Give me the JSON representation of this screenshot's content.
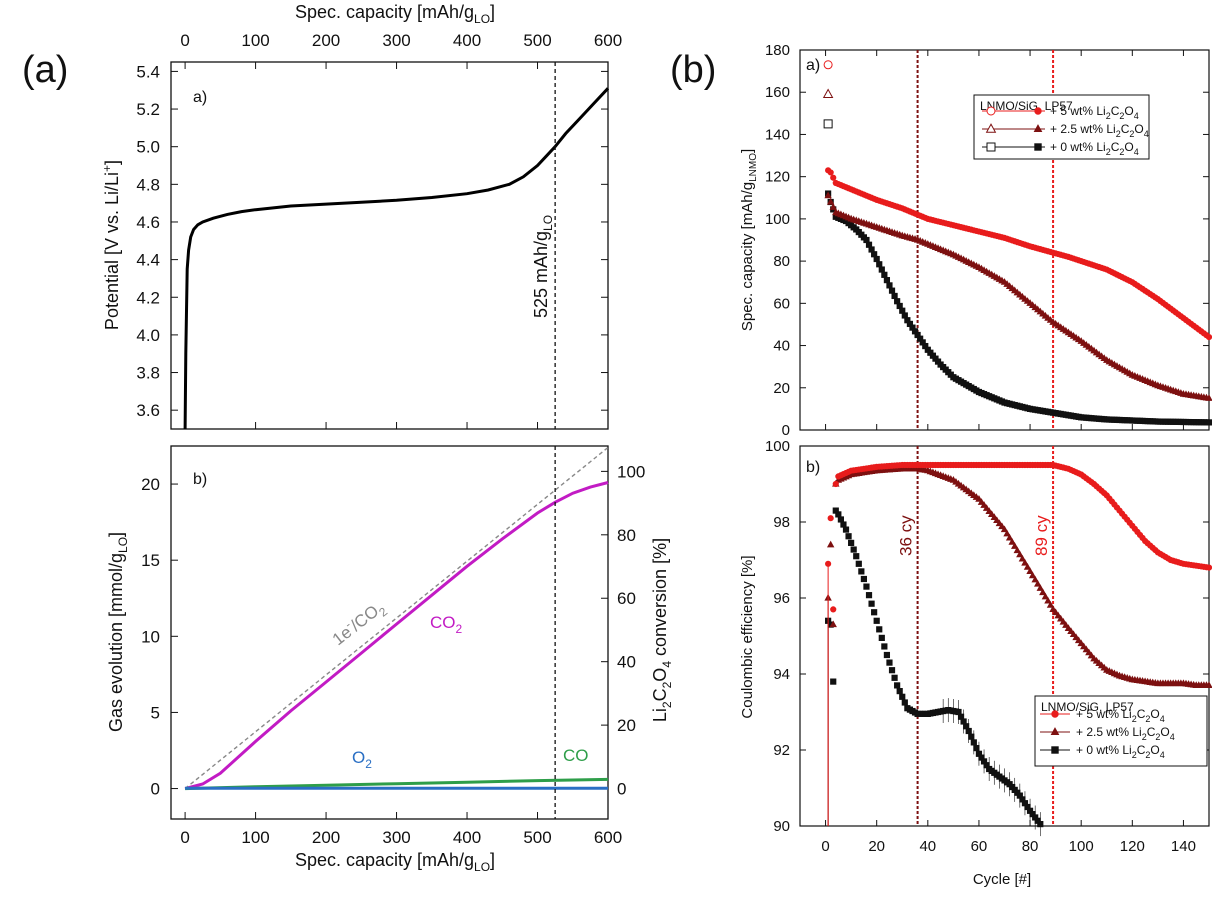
{
  "figure": {
    "panel_a_label": "(a)",
    "panel_b_label": "(b)"
  },
  "chart_data": [
    {
      "id": "a-top",
      "type": "line",
      "subplot_label": "a)",
      "top_xlabel": "Spec. capacity [mAh/g",
      "top_xlabel_sub": "LO",
      "top_xlabel_end": "]",
      "ylabel": "Potential [V vs. Li/Li",
      "ylabel_sup": "+",
      "ylabel_end": "]",
      "xlim": [
        -20,
        600
      ],
      "ylim": [
        3.5,
        5.45
      ],
      "xticks": [
        0,
        100,
        200,
        300,
        400,
        500,
        600
      ],
      "yticks": [
        3.6,
        3.8,
        4.0,
        4.2,
        4.4,
        4.6,
        4.8,
        5.0,
        5.2,
        5.4
      ],
      "series": [
        {
          "name": "Potential",
          "color": "#000000",
          "x": [
            0,
            1,
            3,
            5,
            8,
            12,
            18,
            25,
            40,
            60,
            80,
            100,
            150,
            200,
            250,
            300,
            350,
            400,
            430,
            460,
            480,
            500,
            515,
            525,
            540,
            560,
            580,
            600
          ],
          "y": [
            3.5,
            3.9,
            4.35,
            4.45,
            4.52,
            4.56,
            4.585,
            4.6,
            4.62,
            4.64,
            4.655,
            4.665,
            4.685,
            4.695,
            4.705,
            4.715,
            4.73,
            4.75,
            4.77,
            4.8,
            4.84,
            4.9,
            4.96,
            5.0,
            5.07,
            5.15,
            5.23,
            5.31
          ]
        }
      ],
      "vline_x": 525,
      "vline_label": "525 mAh/g",
      "vline_label_sub": "LO"
    },
    {
      "id": "a-bottom",
      "type": "line",
      "subplot_label": "b)",
      "xlabel": "Spec. capacity [mAh/g",
      "xlabel_sub": "LO",
      "xlabel_end": "]",
      "ylabel": "Gas evolution [mmol/g",
      "ylabel_sub": "LO",
      "ylabel_end": "]",
      "y2label_a": "Li",
      "y2label_b": "2",
      "y2label_c": "C",
      "y2label_d": "2",
      "y2label_e": "O",
      "y2label_f": "4",
      "y2label_g": " conversion [%]",
      "xlim": [
        -20,
        600
      ],
      "ylim": [
        -2,
        22.5
      ],
      "y2lim": [
        -9.6,
        108
      ],
      "xticks": [
        0,
        100,
        200,
        300,
        400,
        500,
        600
      ],
      "yticks": [
        0,
        5,
        10,
        15,
        20
      ],
      "y2ticks": [
        0,
        20,
        40,
        60,
        80,
        100
      ],
      "series": [
        {
          "name": "CO2",
          "color": "#c21bc4",
          "x": [
            0,
            25,
            50,
            100,
            150,
            200,
            250,
            300,
            350,
            400,
            450,
            500,
            525,
            550,
            575,
            600
          ],
          "y": [
            0,
            0.3,
            1.0,
            3.1,
            5.1,
            7.0,
            8.9,
            10.8,
            12.7,
            14.6,
            16.4,
            18.1,
            18.8,
            19.4,
            19.8,
            20.1
          ]
        },
        {
          "name": "1e-/CO2",
          "color": "#888888",
          "dashed": true,
          "x": [
            0,
            600
          ],
          "y": [
            0,
            22.4
          ]
        },
        {
          "name": "CO",
          "color": "#2e9e49",
          "x": [
            0,
            100,
            200,
            300,
            400,
            500,
            600
          ],
          "y": [
            0,
            0.12,
            0.22,
            0.32,
            0.42,
            0.52,
            0.6
          ]
        },
        {
          "name": "O2",
          "color": "#2a6fc4",
          "x": [
            0,
            600
          ],
          "y": [
            0.02,
            0.02
          ]
        }
      ],
      "labels": {
        "co2_a": "CO",
        "co2_b": "2",
        "ideal_a": "1e",
        "ideal_b": "-",
        "ideal_c": "/CO",
        "ideal_d": "2",
        "o2_a": "O",
        "o2_b": "2",
        "co": "CO"
      },
      "vline_x": 525
    },
    {
      "id": "b-top",
      "type": "scatter",
      "subplot_label": "a)",
      "ylabel": "Spec. capacity [mAh/g",
      "ylabel_sub": "LNMO",
      "ylabel_end": "]",
      "xlim": [
        -10,
        150
      ],
      "ylim": [
        0,
        180
      ],
      "xticks": [
        0,
        20,
        40,
        60,
        80,
        100,
        120,
        140
      ],
      "yticks": [
        0,
        20,
        40,
        60,
        80,
        100,
        120,
        140,
        160,
        180
      ],
      "first_charge_markers": [
        {
          "name": "+ 5 wt%",
          "marker": "circle-open",
          "x": 1,
          "y": 173,
          "color": "#e81c1c"
        },
        {
          "name": "+ 2.5 wt%",
          "marker": "triangle-open",
          "x": 1,
          "y": 159,
          "color": "#7d1010"
        },
        {
          "name": "+ 0 wt%",
          "marker": "square-open",
          "x": 1,
          "y": 145,
          "color": "#111111"
        }
      ],
      "series": [
        {
          "name": "+ 5 wt% Li2C2O4",
          "color": "#e81c1c",
          "marker": "circle",
          "x": [
            1,
            2,
            4,
            10,
            20,
            30,
            40,
            50,
            60,
            70,
            80,
            89,
            95,
            100,
            110,
            120,
            130,
            140,
            150
          ],
          "y": [
            123,
            122,
            117,
            114,
            109,
            105,
            100,
            97,
            94,
            91,
            87,
            84,
            82,
            80,
            76,
            70,
            62,
            53,
            44
          ]
        },
        {
          "name": "+ 2.5 wt% Li2C2O4",
          "color": "#7d1010",
          "marker": "triangle",
          "x": [
            1,
            2,
            4,
            10,
            20,
            30,
            36,
            40,
            50,
            60,
            70,
            80,
            89,
            100,
            110,
            120,
            130,
            140,
            150
          ],
          "y": [
            111,
            108,
            103,
            100,
            96,
            92,
            90,
            88,
            83,
            77,
            70,
            60,
            51,
            42,
            33,
            26,
            21,
            17,
            15
          ]
        },
        {
          "name": "+ 0 wt% Li2C2O4",
          "color": "#111111",
          "marker": "square",
          "x": [
            1,
            2,
            4,
            8,
            12,
            16,
            20,
            24,
            28,
            32,
            36,
            40,
            45,
            50,
            60,
            70,
            80,
            90,
            100,
            110,
            120,
            130,
            140,
            150
          ],
          "y": [
            112,
            108,
            101,
            99,
            95,
            90,
            81,
            71,
            61,
            52,
            45,
            38,
            31,
            25,
            18,
            13,
            10,
            8,
            6,
            5,
            4.5,
            4,
            3.8,
            3.6
          ]
        }
      ],
      "legend": {
        "title": "LNMO/SiG, LP57",
        "entries": [
          {
            "text_a": "+ 5 wt% Li",
            "text_b": "2",
            "text_c": "C",
            "text_d": "2",
            "text_e": "O",
            "text_f": "4"
          },
          {
            "text_a": "+ 2.5 wt% Li",
            "text_b": "2",
            "text_c": "C",
            "text_d": "2",
            "text_e": "O",
            "text_f": "4"
          },
          {
            "text_a": "+ 0 wt% Li",
            "text_b": "2",
            "text_c": "C",
            "text_d": "2",
            "text_e": "O",
            "text_f": "4"
          }
        ]
      },
      "vlines": [
        36,
        89
      ]
    },
    {
      "id": "b-bottom",
      "type": "scatter",
      "subplot_label": "b)",
      "xlabel": "Cycle [#]",
      "ylabel": "Coulombic efficiency [%]",
      "xlim": [
        -10,
        150
      ],
      "ylim": [
        90,
        100
      ],
      "xticks": [
        0,
        20,
        40,
        60,
        80,
        100,
        120,
        140
      ],
      "yticks": [
        90,
        92,
        94,
        96,
        98,
        100
      ],
      "series": [
        {
          "name": "+ 5 wt% Li2C2O4",
          "color": "#e81c1c",
          "marker": "circle",
          "x": [
            1,
            2,
            3,
            4,
            5,
            10,
            20,
            30,
            40,
            50,
            60,
            70,
            80,
            89,
            95,
            100,
            105,
            110,
            115,
            120,
            125,
            130,
            135,
            140,
            145,
            150
          ],
          "y": [
            96.9,
            98.1,
            95.7,
            99.0,
            99.2,
            99.35,
            99.45,
            99.5,
            99.5,
            99.5,
            99.5,
            99.5,
            99.5,
            99.5,
            99.4,
            99.25,
            99.0,
            98.7,
            98.3,
            97.9,
            97.5,
            97.2,
            97.0,
            96.9,
            96.85,
            96.8
          ]
        },
        {
          "name": "+ 2.5 wt% Li2C2O4",
          "color": "#7d1010",
          "marker": "triangle",
          "x": [
            1,
            2,
            3,
            4,
            5,
            10,
            20,
            30,
            36,
            40,
            50,
            60,
            70,
            80,
            89,
            95,
            100,
            105,
            110,
            115,
            120,
            125,
            130,
            135,
            140,
            145,
            150
          ],
          "y": [
            96.0,
            97.4,
            95.3,
            99.0,
            99.1,
            99.25,
            99.35,
            99.4,
            99.4,
            99.35,
            99.1,
            98.6,
            97.8,
            96.7,
            95.7,
            95.2,
            94.8,
            94.4,
            94.1,
            93.95,
            93.85,
            93.8,
            93.75,
            93.75,
            93.75,
            93.7,
            93.7
          ]
        },
        {
          "name": "+ 0 wt% Li2C2O4",
          "color": "#111111",
          "marker": "square",
          "x": [
            1,
            2,
            3,
            4,
            5,
            8,
            12,
            16,
            20,
            24,
            28,
            32,
            36,
            40,
            44,
            48,
            52,
            56,
            60,
            64,
            68,
            72,
            76,
            80,
            84
          ],
          "y": [
            95.4,
            95.3,
            93.8,
            98.3,
            98.2,
            97.8,
            97.1,
            96.3,
            95.4,
            94.5,
            93.7,
            93.1,
            92.95,
            92.95,
            93.0,
            93.05,
            93.0,
            92.5,
            91.9,
            91.5,
            91.3,
            91.1,
            90.8,
            90.4,
            90.05
          ]
        }
      ],
      "legend": {
        "title": "LNMO/SiG, LP57",
        "entries": [
          {
            "text_a": "+ 5 wt% Li",
            "text_b": "2",
            "text_c": "C",
            "text_d": "2",
            "text_e": "O",
            "text_f": "4"
          },
          {
            "text_a": "+ 2.5 wt% Li",
            "text_b": "2",
            "text_c": "C",
            "text_d": "2",
            "text_e": "O",
            "text_f": "4"
          },
          {
            "text_a": "+ 0 wt% Li",
            "text_b": "2",
            "text_c": "C",
            "text_d": "2",
            "text_e": "O",
            "text_f": "4"
          }
        ]
      },
      "vlines": [
        36,
        89
      ],
      "vline_labels": [
        "36 cy",
        "89 cy"
      ],
      "vline_colors": [
        "#7d1010",
        "#e81c1c"
      ]
    }
  ]
}
